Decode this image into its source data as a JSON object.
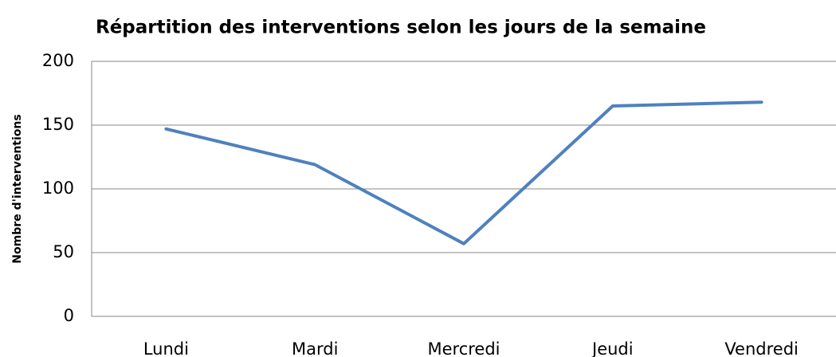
{
  "chart_data": {
    "type": "line",
    "title": "Répartition des interventions selon les jours de la semaine",
    "y_label": "Nombre d'interventions",
    "categories": [
      "Lundi",
      "Mardi",
      "Mercredi",
      "Jeudi",
      "Vendredi"
    ],
    "series": [
      {
        "name": "Interventions",
        "color": "#4f81bd",
        "values": [
          147,
          119,
          57,
          165,
          168
        ]
      }
    ],
    "ylim": [
      0,
      200
    ],
    "yticks": [
      0,
      50,
      100,
      150,
      200
    ],
    "grid": true,
    "legend": false
  }
}
